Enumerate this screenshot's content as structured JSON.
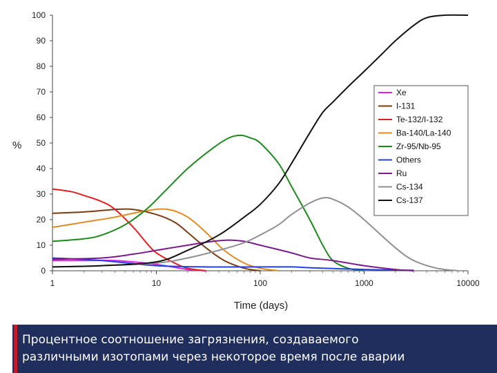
{
  "caption": {
    "line1": "Процентное соотношение загрязнения, создаваемого",
    "line2": "различными изотопами через некоторое время после аварии",
    "accent_color": "#c01c2c",
    "background_color": "#1f2e5c"
  },
  "chart_data": {
    "type": "line",
    "title": "",
    "xlabel": "Time (days)",
    "ylabel": "%",
    "x_scale": "log",
    "xlim": [
      1,
      10000
    ],
    "ylim": [
      0,
      100
    ],
    "x_ticks": [
      1,
      10,
      100,
      1000,
      10000
    ],
    "x_tick_labels": [
      "1",
      "10",
      "100",
      "1000",
      "10000"
    ],
    "y_ticks": [
      0,
      10,
      20,
      30,
      40,
      50,
      60,
      70,
      80,
      90,
      100
    ],
    "y_tick_labels": [
      "0",
      "10",
      "20",
      "30",
      "40",
      "50",
      "60",
      "70",
      "80",
      "90",
      "100"
    ],
    "grid": false,
    "legend_position": "right",
    "series": [
      {
        "name": "Xe",
        "color": "#e020e0",
        "points": [
          [
            1,
            4
          ],
          [
            2,
            4
          ],
          [
            4,
            4
          ],
          [
            8,
            3
          ],
          [
            12,
            2
          ],
          [
            20,
            0.5
          ],
          [
            30,
            0
          ]
        ]
      },
      {
        "name": "I-131",
        "color": "#7a3b10",
        "points": [
          [
            1,
            22.5
          ],
          [
            2,
            23
          ],
          [
            4,
            24
          ],
          [
            6,
            24
          ],
          [
            10,
            22
          ],
          [
            15,
            19
          ],
          [
            20,
            15
          ],
          [
            30,
            9
          ],
          [
            45,
            4
          ],
          [
            70,
            1
          ],
          [
            100,
            0
          ]
        ]
      },
      {
        "name": "Te-132/I-132",
        "color": "#e02020",
        "points": [
          [
            1,
            32
          ],
          [
            1.5,
            31
          ],
          [
            2,
            29.5
          ],
          [
            3,
            27
          ],
          [
            4,
            24
          ],
          [
            6,
            17
          ],
          [
            8,
            11
          ],
          [
            10,
            7
          ],
          [
            15,
            3
          ],
          [
            20,
            1
          ],
          [
            30,
            0
          ]
        ]
      },
      {
        "name": "Ba-140/La-140",
        "color": "#e08a20",
        "points": [
          [
            1,
            17
          ],
          [
            2,
            19
          ],
          [
            4,
            21
          ],
          [
            8,
            23.5
          ],
          [
            13,
            24
          ],
          [
            20,
            21
          ],
          [
            30,
            15
          ],
          [
            45,
            8
          ],
          [
            70,
            3
          ],
          [
            100,
            1
          ],
          [
            150,
            0
          ]
        ]
      },
      {
        "name": "Zr-95/Nb-95",
        "color": "#1a8a1a",
        "points": [
          [
            1,
            11.5
          ],
          [
            2,
            12.5
          ],
          [
            3,
            14
          ],
          [
            5,
            18
          ],
          [
            8,
            24
          ],
          [
            12,
            31
          ],
          [
            20,
            40
          ],
          [
            35,
            48
          ],
          [
            50,
            52
          ],
          [
            65,
            53
          ],
          [
            80,
            52
          ],
          [
            100,
            50
          ],
          [
            150,
            42
          ],
          [
            200,
            33
          ],
          [
            300,
            20
          ],
          [
            400,
            10
          ],
          [
            500,
            4
          ],
          [
            700,
            1
          ],
          [
            1000,
            0
          ]
        ]
      },
      {
        "name": "Others",
        "color": "#2040e0",
        "points": [
          [
            1,
            5
          ],
          [
            3,
            4
          ],
          [
            10,
            2
          ],
          [
            30,
            1.5
          ],
          [
            100,
            1.5
          ],
          [
            200,
            1.5
          ],
          [
            300,
            1.2
          ],
          [
            1000,
            0.5
          ],
          [
            3000,
            0.2
          ]
        ]
      },
      {
        "name": "Ru",
        "color": "#7a1a8a",
        "points": [
          [
            1,
            4.5
          ],
          [
            3,
            5
          ],
          [
            6,
            6.5
          ],
          [
            10,
            8
          ],
          [
            20,
            10
          ],
          [
            35,
            11.5
          ],
          [
            50,
            12
          ],
          [
            70,
            11.5
          ],
          [
            100,
            10
          ],
          [
            200,
            7
          ],
          [
            300,
            5
          ],
          [
            500,
            4
          ],
          [
            1000,
            2
          ],
          [
            2000,
            0.5
          ],
          [
            3000,
            0
          ]
        ]
      },
      {
        "name": "Cs-134",
        "color": "#909090",
        "points": [
          [
            1,
            1.5
          ],
          [
            3,
            2
          ],
          [
            10,
            3
          ],
          [
            20,
            5
          ],
          [
            40,
            8
          ],
          [
            70,
            11
          ],
          [
            100,
            14
          ],
          [
            150,
            18
          ],
          [
            200,
            22
          ],
          [
            300,
            26.5
          ],
          [
            400,
            28.5
          ],
          [
            500,
            28
          ],
          [
            700,
            25
          ],
          [
            1000,
            20
          ],
          [
            2000,
            9
          ],
          [
            3000,
            4
          ],
          [
            5000,
            1
          ],
          [
            8000,
            0
          ]
        ]
      },
      {
        "name": "Cs-137",
        "color": "#111111",
        "points": [
          [
            1,
            1.5
          ],
          [
            3,
            2
          ],
          [
            10,
            3.5
          ],
          [
            20,
            8
          ],
          [
            40,
            14
          ],
          [
            70,
            21
          ],
          [
            100,
            26
          ],
          [
            150,
            34
          ],
          [
            200,
            42
          ],
          [
            300,
            54
          ],
          [
            400,
            62
          ],
          [
            500,
            66
          ],
          [
            700,
            72
          ],
          [
            1000,
            78
          ],
          [
            1500,
            85
          ],
          [
            2000,
            90
          ],
          [
            3000,
            96
          ],
          [
            4000,
            99
          ],
          [
            6000,
            100
          ],
          [
            10000,
            100
          ]
        ]
      }
    ]
  }
}
